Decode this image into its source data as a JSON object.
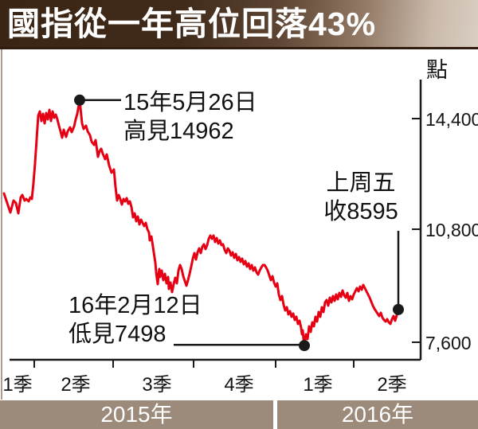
{
  "title": "國指從一年高位回落43%",
  "y_axis": {
    "unit_label": "點",
    "ticks": [
      "14,400",
      "10,800",
      "7,600"
    ],
    "tick_values": [
      14400,
      10800,
      7600
    ]
  },
  "x_axis": {
    "quarter_labels": [
      "1季",
      "2季",
      "3季",
      "4季",
      "1季",
      "2季"
    ],
    "year_labels": [
      "2015年",
      "2016年"
    ]
  },
  "annotations": {
    "peak": {
      "line1": "15年5月26日",
      "line2": "高見14962",
      "value": 14962
    },
    "low": {
      "line1": "16年2月12日",
      "line2": "低見7498",
      "value": 7498
    },
    "close": {
      "line1": "上周五",
      "line2": "收8595",
      "value": 8595
    }
  },
  "colors": {
    "line": "#e60013",
    "axis": "#1a1a1a",
    "year_band": "#9c8a7b",
    "title_gradient_dark": "#3a2414",
    "title_gradient_light": "#d9cec2"
  },
  "chart_data": {
    "type": "line",
    "title": "國指從一年高位回落43%",
    "ylabel": "點",
    "y_ticks": [
      14400,
      10800,
      7600
    ],
    "ylim": [
      7100,
      15300
    ],
    "x_quarters": [
      "2015 1季",
      "2015 2季",
      "2015 3季",
      "2015 4季",
      "2016 1季",
      "2016 2季"
    ],
    "legend": "none",
    "grid": false,
    "key_points": {
      "high": {
        "label": "15年5月26日 高見14962",
        "value": 14962,
        "t": 100
      },
      "low": {
        "label": "16年2月12日 低見7498",
        "value": 7498,
        "t": 382
      },
      "last_close": {
        "label": "上周五 收8595",
        "value": 8595,
        "t": 500
      }
    },
    "t_unit": "timeline position 5→500 spans 2015Q1→2016Q2; quarter boundaries at t=43,142,243,346,444",
    "series": [
      {
        "name": "國指",
        "points": [
          [
            5,
            12125
          ],
          [
            9,
            11835
          ],
          [
            13,
            11544
          ],
          [
            17,
            11907
          ],
          [
            20,
            11835
          ],
          [
            23,
            11520
          ],
          [
            26,
            12004
          ],
          [
            28,
            12077
          ],
          [
            31,
            11907
          ],
          [
            33,
            11956
          ],
          [
            36,
            11883
          ],
          [
            38,
            12004
          ],
          [
            40,
            11956
          ],
          [
            42,
            12440
          ],
          [
            44,
            13045
          ],
          [
            46,
            13771
          ],
          [
            48,
            14497
          ],
          [
            50,
            14618
          ],
          [
            52,
            14328
          ],
          [
            54,
            14545
          ],
          [
            56,
            14255
          ],
          [
            58,
            14570
          ],
          [
            60,
            14376
          ],
          [
            62,
            14666
          ],
          [
            64,
            14328
          ],
          [
            66,
            14618
          ],
          [
            68,
            14424
          ],
          [
            70,
            14521
          ],
          [
            72,
            14376
          ],
          [
            74,
            14182
          ],
          [
            76,
            14013
          ],
          [
            78,
            13819
          ],
          [
            80,
            14061
          ],
          [
            83,
            13843
          ],
          [
            85,
            14013
          ],
          [
            88,
            14134
          ],
          [
            90,
            13989
          ],
          [
            93,
            14158
          ],
          [
            95,
            14376
          ],
          [
            97,
            14545
          ],
          [
            100,
            14962
          ],
          [
            103,
            14255
          ],
          [
            105,
            14086
          ],
          [
            108,
            14182
          ],
          [
            110,
            14013
          ],
          [
            113,
            13892
          ],
          [
            115,
            13698
          ],
          [
            118,
            13601
          ],
          [
            120,
            13747
          ],
          [
            123,
            13238
          ],
          [
            125,
            13408
          ],
          [
            127,
            13480
          ],
          [
            129,
            13335
          ],
          [
            132,
            13166
          ],
          [
            134,
            13311
          ],
          [
            137,
            12972
          ],
          [
            140,
            12754
          ],
          [
            143,
            12851
          ],
          [
            145,
            12319
          ],
          [
            147,
            11907
          ],
          [
            149,
            12077
          ],
          [
            151,
            11956
          ],
          [
            153,
            11786
          ],
          [
            155,
            11956
          ],
          [
            157,
            11883
          ],
          [
            159,
            11980
          ],
          [
            161,
            11810
          ],
          [
            163,
            11883
          ],
          [
            165,
            11714
          ],
          [
            167,
            11399
          ],
          [
            169,
            11520
          ],
          [
            171,
            11278
          ],
          [
            173,
            11423
          ],
          [
            175,
            11181
          ],
          [
            177,
            11326
          ],
          [
            179,
            11230
          ],
          [
            181,
            11133
          ],
          [
            183,
            11230
          ],
          [
            185,
            11036
          ],
          [
            187,
            10939
          ],
          [
            188,
            10697
          ],
          [
            190,
            10818
          ],
          [
            192,
            10504
          ],
          [
            193,
            10334
          ],
          [
            195,
            10020
          ],
          [
            196,
            9729
          ],
          [
            197,
            9536
          ],
          [
            198,
            9366
          ],
          [
            199,
            9657
          ],
          [
            200,
            9826
          ],
          [
            201,
            9584
          ],
          [
            203,
            9778
          ],
          [
            205,
            9487
          ],
          [
            207,
            9681
          ],
          [
            209,
            9390
          ],
          [
            211,
            9584
          ],
          [
            212,
            9221
          ],
          [
            214,
            9415
          ],
          [
            216,
            9124
          ],
          [
            218,
            9366
          ],
          [
            220,
            9560
          ],
          [
            222,
            9390
          ],
          [
            224,
            9778
          ],
          [
            226,
            9947
          ],
          [
            228,
            9826
          ],
          [
            230,
            9608
          ],
          [
            232,
            9463
          ],
          [
            234,
            9318
          ],
          [
            236,
            9487
          ],
          [
            238,
            9681
          ],
          [
            240,
            9899
          ],
          [
            242,
            10141
          ],
          [
            244,
            10310
          ],
          [
            246,
            10117
          ],
          [
            248,
            10334
          ],
          [
            250,
            10455
          ],
          [
            252,
            10310
          ],
          [
            254,
            10504
          ],
          [
            256,
            10576
          ],
          [
            258,
            10431
          ],
          [
            260,
            10552
          ],
          [
            262,
            10746
          ],
          [
            264,
            10842
          ],
          [
            266,
            10746
          ],
          [
            268,
            10842
          ],
          [
            270,
            10649
          ],
          [
            272,
            10770
          ],
          [
            274,
            10600
          ],
          [
            276,
            10697
          ],
          [
            278,
            10552
          ],
          [
            280,
            10576
          ],
          [
            282,
            10407
          ],
          [
            284,
            10310
          ],
          [
            286,
            10455
          ],
          [
            288,
            10383
          ],
          [
            290,
            10238
          ],
          [
            292,
            10334
          ],
          [
            294,
            10165
          ],
          [
            296,
            10286
          ],
          [
            298,
            10092
          ],
          [
            300,
            10189
          ],
          [
            302,
            10044
          ],
          [
            304,
            10141
          ],
          [
            306,
            9971
          ],
          [
            308,
            10068
          ],
          [
            310,
            9899
          ],
          [
            312,
            9996
          ],
          [
            314,
            9826
          ],
          [
            316,
            9947
          ],
          [
            318,
            9778
          ],
          [
            320,
            9874
          ],
          [
            322,
            9729
          ],
          [
            324,
            9657
          ],
          [
            326,
            9778
          ],
          [
            328,
            9874
          ],
          [
            330,
            9947
          ],
          [
            332,
            9947
          ],
          [
            334,
            9874
          ],
          [
            336,
            9778
          ],
          [
            338,
            9632
          ],
          [
            340,
            9487
          ],
          [
            342,
            9608
          ],
          [
            344,
            9415
          ],
          [
            346,
            9294
          ],
          [
            348,
            9390
          ],
          [
            350,
            9052
          ],
          [
            352,
            8882
          ],
          [
            354,
            9003
          ],
          [
            356,
            8737
          ],
          [
            358,
            8568
          ],
          [
            360,
            8664
          ],
          [
            362,
            8447
          ],
          [
            364,
            8543
          ],
          [
            366,
            8374
          ],
          [
            368,
            8471
          ],
          [
            370,
            8277
          ],
          [
            372,
            8374
          ],
          [
            374,
            8156
          ],
          [
            376,
            8253
          ],
          [
            378,
            8035
          ],
          [
            379,
            7842
          ],
          [
            380,
            7963
          ],
          [
            381,
            7697
          ],
          [
            382,
            7498
          ],
          [
            384,
            7842
          ],
          [
            386,
            7697
          ],
          [
            388,
            8084
          ],
          [
            390,
            7914
          ],
          [
            392,
            8205
          ],
          [
            394,
            8084
          ],
          [
            396,
            8374
          ],
          [
            398,
            8229
          ],
          [
            400,
            8519
          ],
          [
            402,
            8374
          ],
          [
            404,
            8664
          ],
          [
            406,
            8519
          ],
          [
            408,
            8810
          ],
          [
            410,
            8882
          ],
          [
            412,
            8713
          ],
          [
            414,
            8955
          ],
          [
            416,
            8810
          ],
          [
            418,
            9003
          ],
          [
            420,
            8858
          ],
          [
            422,
            9052
          ],
          [
            424,
            8906
          ],
          [
            426,
            9100
          ],
          [
            428,
            8979
          ],
          [
            430,
            9173
          ],
          [
            432,
            9027
          ],
          [
            434,
            8955
          ],
          [
            436,
            9100
          ],
          [
            438,
            8858
          ],
          [
            440,
            9003
          ],
          [
            442,
            8906
          ],
          [
            444,
            9052
          ],
          [
            446,
            9149
          ],
          [
            448,
            9245
          ],
          [
            450,
            9149
          ],
          [
            452,
            9294
          ],
          [
            454,
            9197
          ],
          [
            456,
            9342
          ],
          [
            458,
            9245
          ],
          [
            460,
            9149
          ],
          [
            462,
            9052
          ],
          [
            464,
            8955
          ],
          [
            466,
            8834
          ],
          [
            468,
            8713
          ],
          [
            470,
            8616
          ],
          [
            472,
            8543
          ],
          [
            474,
            8471
          ],
          [
            476,
            8398
          ],
          [
            478,
            8495
          ],
          [
            480,
            8350
          ],
          [
            482,
            8277
          ],
          [
            484,
            8229
          ],
          [
            486,
            8301
          ],
          [
            488,
            8205
          ],
          [
            490,
            8156
          ],
          [
            492,
            8301
          ],
          [
            494,
            8398
          ],
          [
            496,
            8253
          ],
          [
            498,
            8422
          ],
          [
            500,
            8595
          ]
        ]
      }
    ]
  }
}
